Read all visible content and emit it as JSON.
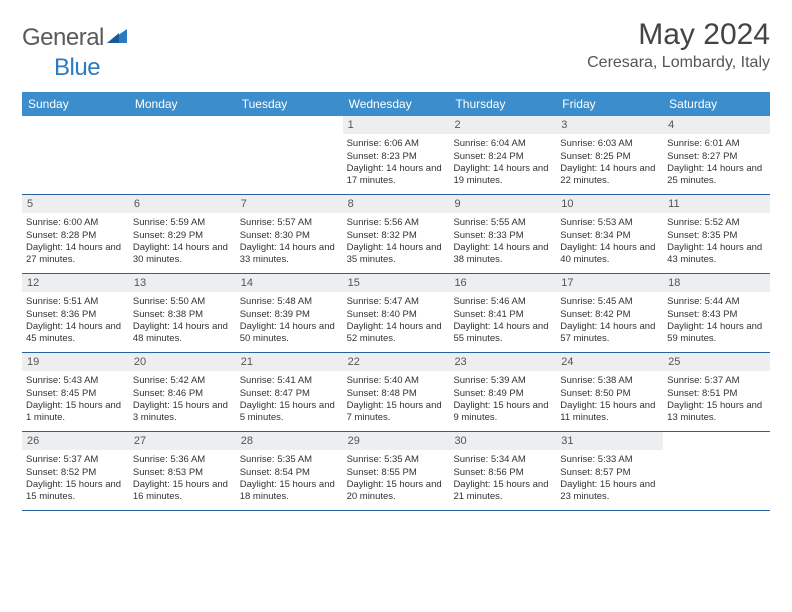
{
  "brand": {
    "text1": "General",
    "text2": "Blue"
  },
  "title": "May 2024",
  "location": "Ceresara, Lombardy, Italy",
  "colors": {
    "header_bg": "#3c8dcc",
    "row_border": "#2862a0",
    "date_bg": "#eceeef",
    "brand_gray": "#5a5a5a",
    "brand_blue": "#2b7bc0"
  },
  "dayNames": [
    "Sunday",
    "Monday",
    "Tuesday",
    "Wednesday",
    "Thursday",
    "Friday",
    "Saturday"
  ],
  "weeks": [
    [
      {
        "n": "",
        "sr": "",
        "ss": "",
        "dl": ""
      },
      {
        "n": "",
        "sr": "",
        "ss": "",
        "dl": ""
      },
      {
        "n": "",
        "sr": "",
        "ss": "",
        "dl": ""
      },
      {
        "n": "1",
        "sr": "6:06 AM",
        "ss": "8:23 PM",
        "dl": "14 hours and 17 minutes."
      },
      {
        "n": "2",
        "sr": "6:04 AM",
        "ss": "8:24 PM",
        "dl": "14 hours and 19 minutes."
      },
      {
        "n": "3",
        "sr": "6:03 AM",
        "ss": "8:25 PM",
        "dl": "14 hours and 22 minutes."
      },
      {
        "n": "4",
        "sr": "6:01 AM",
        "ss": "8:27 PM",
        "dl": "14 hours and 25 minutes."
      }
    ],
    [
      {
        "n": "5",
        "sr": "6:00 AM",
        "ss": "8:28 PM",
        "dl": "14 hours and 27 minutes."
      },
      {
        "n": "6",
        "sr": "5:59 AM",
        "ss": "8:29 PM",
        "dl": "14 hours and 30 minutes."
      },
      {
        "n": "7",
        "sr": "5:57 AM",
        "ss": "8:30 PM",
        "dl": "14 hours and 33 minutes."
      },
      {
        "n": "8",
        "sr": "5:56 AM",
        "ss": "8:32 PM",
        "dl": "14 hours and 35 minutes."
      },
      {
        "n": "9",
        "sr": "5:55 AM",
        "ss": "8:33 PM",
        "dl": "14 hours and 38 minutes."
      },
      {
        "n": "10",
        "sr": "5:53 AM",
        "ss": "8:34 PM",
        "dl": "14 hours and 40 minutes."
      },
      {
        "n": "11",
        "sr": "5:52 AM",
        "ss": "8:35 PM",
        "dl": "14 hours and 43 minutes."
      }
    ],
    [
      {
        "n": "12",
        "sr": "5:51 AM",
        "ss": "8:36 PM",
        "dl": "14 hours and 45 minutes."
      },
      {
        "n": "13",
        "sr": "5:50 AM",
        "ss": "8:38 PM",
        "dl": "14 hours and 48 minutes."
      },
      {
        "n": "14",
        "sr": "5:48 AM",
        "ss": "8:39 PM",
        "dl": "14 hours and 50 minutes."
      },
      {
        "n": "15",
        "sr": "5:47 AM",
        "ss": "8:40 PM",
        "dl": "14 hours and 52 minutes."
      },
      {
        "n": "16",
        "sr": "5:46 AM",
        "ss": "8:41 PM",
        "dl": "14 hours and 55 minutes."
      },
      {
        "n": "17",
        "sr": "5:45 AM",
        "ss": "8:42 PM",
        "dl": "14 hours and 57 minutes."
      },
      {
        "n": "18",
        "sr": "5:44 AM",
        "ss": "8:43 PM",
        "dl": "14 hours and 59 minutes."
      }
    ],
    [
      {
        "n": "19",
        "sr": "5:43 AM",
        "ss": "8:45 PM",
        "dl": "15 hours and 1 minute."
      },
      {
        "n": "20",
        "sr": "5:42 AM",
        "ss": "8:46 PM",
        "dl": "15 hours and 3 minutes."
      },
      {
        "n": "21",
        "sr": "5:41 AM",
        "ss": "8:47 PM",
        "dl": "15 hours and 5 minutes."
      },
      {
        "n": "22",
        "sr": "5:40 AM",
        "ss": "8:48 PM",
        "dl": "15 hours and 7 minutes."
      },
      {
        "n": "23",
        "sr": "5:39 AM",
        "ss": "8:49 PM",
        "dl": "15 hours and 9 minutes."
      },
      {
        "n": "24",
        "sr": "5:38 AM",
        "ss": "8:50 PM",
        "dl": "15 hours and 11 minutes."
      },
      {
        "n": "25",
        "sr": "5:37 AM",
        "ss": "8:51 PM",
        "dl": "15 hours and 13 minutes."
      }
    ],
    [
      {
        "n": "26",
        "sr": "5:37 AM",
        "ss": "8:52 PM",
        "dl": "15 hours and 15 minutes."
      },
      {
        "n": "27",
        "sr": "5:36 AM",
        "ss": "8:53 PM",
        "dl": "15 hours and 16 minutes."
      },
      {
        "n": "28",
        "sr": "5:35 AM",
        "ss": "8:54 PM",
        "dl": "15 hours and 18 minutes."
      },
      {
        "n": "29",
        "sr": "5:35 AM",
        "ss": "8:55 PM",
        "dl": "15 hours and 20 minutes."
      },
      {
        "n": "30",
        "sr": "5:34 AM",
        "ss": "8:56 PM",
        "dl": "15 hours and 21 minutes."
      },
      {
        "n": "31",
        "sr": "5:33 AM",
        "ss": "8:57 PM",
        "dl": "15 hours and 23 minutes."
      },
      {
        "n": "",
        "sr": "",
        "ss": "",
        "dl": ""
      }
    ]
  ],
  "labels": {
    "sunrise": "Sunrise:",
    "sunset": "Sunset:",
    "daylight": "Daylight:"
  }
}
